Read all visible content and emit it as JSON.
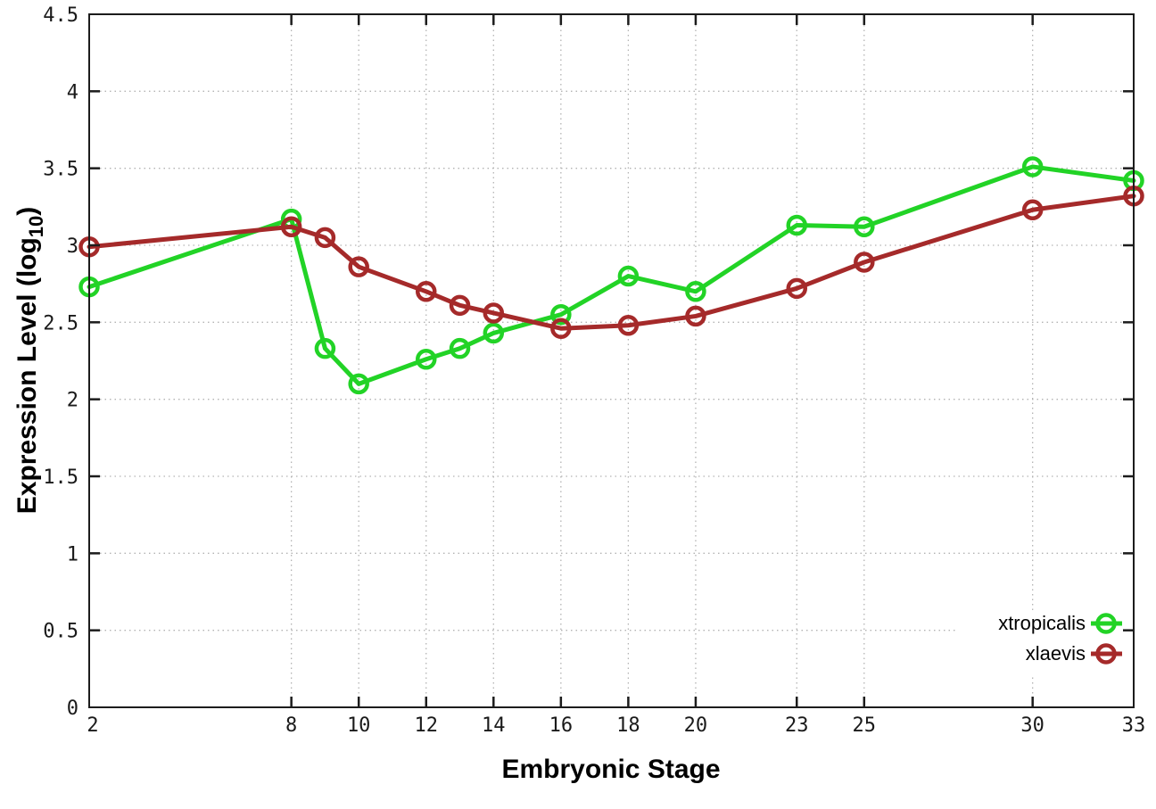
{
  "figure": {
    "background": "#ffffff",
    "border_color": "#1c1c1c",
    "grid_color": "#b3b3b3",
    "ylabel_pre": "Expression Level (log",
    "ylabel_sub": "10",
    "ylabel_post": ")"
  },
  "chart_data": {
    "type": "line",
    "title": "",
    "xlabel": "Embryonic Stage",
    "ylabel": "Expression Level (log10)",
    "x": [
      2,
      8,
      9,
      10,
      12,
      13,
      14,
      16,
      18,
      20,
      23,
      25,
      30,
      33
    ],
    "series": [
      {
        "name": "xtropicalis",
        "color": "#22d326",
        "marker": "open-circle",
        "values": [
          2.73,
          3.17,
          2.33,
          2.1,
          2.26,
          2.33,
          2.43,
          2.55,
          2.8,
          2.7,
          3.13,
          3.12,
          3.51,
          3.42
        ]
      },
      {
        "name": "xlaevis",
        "color": "#a52a2a",
        "marker": "open-circle",
        "values": [
          2.99,
          3.12,
          3.05,
          2.86,
          2.7,
          2.61,
          2.56,
          2.46,
          2.48,
          2.54,
          2.72,
          2.89,
          3.23,
          3.32
        ]
      }
    ],
    "xlim": [
      2,
      33
    ],
    "ylim": [
      0,
      4.5
    ],
    "xticks": [
      2,
      8,
      10,
      12,
      14,
      16,
      18,
      20,
      23,
      25,
      30,
      33
    ],
    "yticks": [
      0,
      0.5,
      1,
      1.5,
      2,
      2.5,
      3,
      3.5,
      4,
      4.5
    ],
    "grid": true,
    "grid_style": "dotted",
    "legend_position": "bottom-right"
  }
}
